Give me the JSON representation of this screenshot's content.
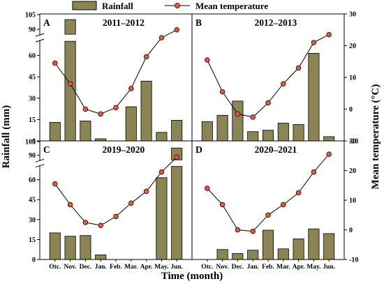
{
  "chart_data": {
    "type": "bar",
    "legend": {
      "bar_label": "Rainfall",
      "line_label": "Mean temperature",
      "placement": "top-center"
    },
    "colors": {
      "bar": "#8a8552",
      "line": "#000000",
      "marker": "#e8553f"
    },
    "xlabel": "Time (month)",
    "ylabel_left": "Rainfall (mm)",
    "ylabel_right": "Mean temperature (°C)",
    "categories": [
      "Otc.",
      "Nov.",
      "Dec.",
      "Jan.",
      "Feb.",
      "Mar.",
      "Apr.",
      "May.",
      "Jun."
    ],
    "rain_axis": {
      "ticks": [
        "0",
        "15",
        "30",
        "45",
        "60",
        "90",
        "105"
      ],
      "lower_range": [
        0,
        70
      ],
      "upper_range": [
        85,
        105
      ],
      "break": true
    },
    "temp_axis": {
      "ticks": [
        "-10",
        "0",
        "10",
        "20",
        "30"
      ],
      "range": [
        -10,
        30
      ]
    },
    "panels": [
      {
        "letter": "A",
        "title": "2011–2012",
        "rainfall": [
          13,
          100,
          14,
          1.5,
          0,
          24,
          42,
          6,
          14.5
        ],
        "temperature": [
          14.5,
          8,
          0,
          -1.5,
          0.5,
          6.5,
          16.5,
          22.5,
          25
        ]
      },
      {
        "letter": "B",
        "title": "2012–2013",
        "rainfall": [
          13.5,
          18,
          28,
          6.5,
          7.5,
          12.5,
          11.5,
          61.5,
          3
        ],
        "temperature": [
          15.5,
          5.5,
          -1.5,
          -2.5,
          2,
          8,
          13,
          21,
          23.5
        ]
      },
      {
        "letter": "C",
        "title": "2019–2020",
        "rainfall": [
          20,
          17.5,
          18,
          3.5,
          0,
          0,
          0,
          61.5,
          98
        ],
        "temperature": [
          15.5,
          8.5,
          2.5,
          1.5,
          4.5,
          9,
          13,
          19.5,
          24.5
        ]
      },
      {
        "letter": "D",
        "title": "2020–2021",
        "rainfall": [
          0,
          7.5,
          4.5,
          7,
          22,
          8,
          15.5,
          23,
          19.5
        ],
        "temperature": [
          14,
          8.5,
          0,
          -0.5,
          5,
          8.5,
          12.5,
          19.5,
          25.5
        ]
      }
    ]
  }
}
